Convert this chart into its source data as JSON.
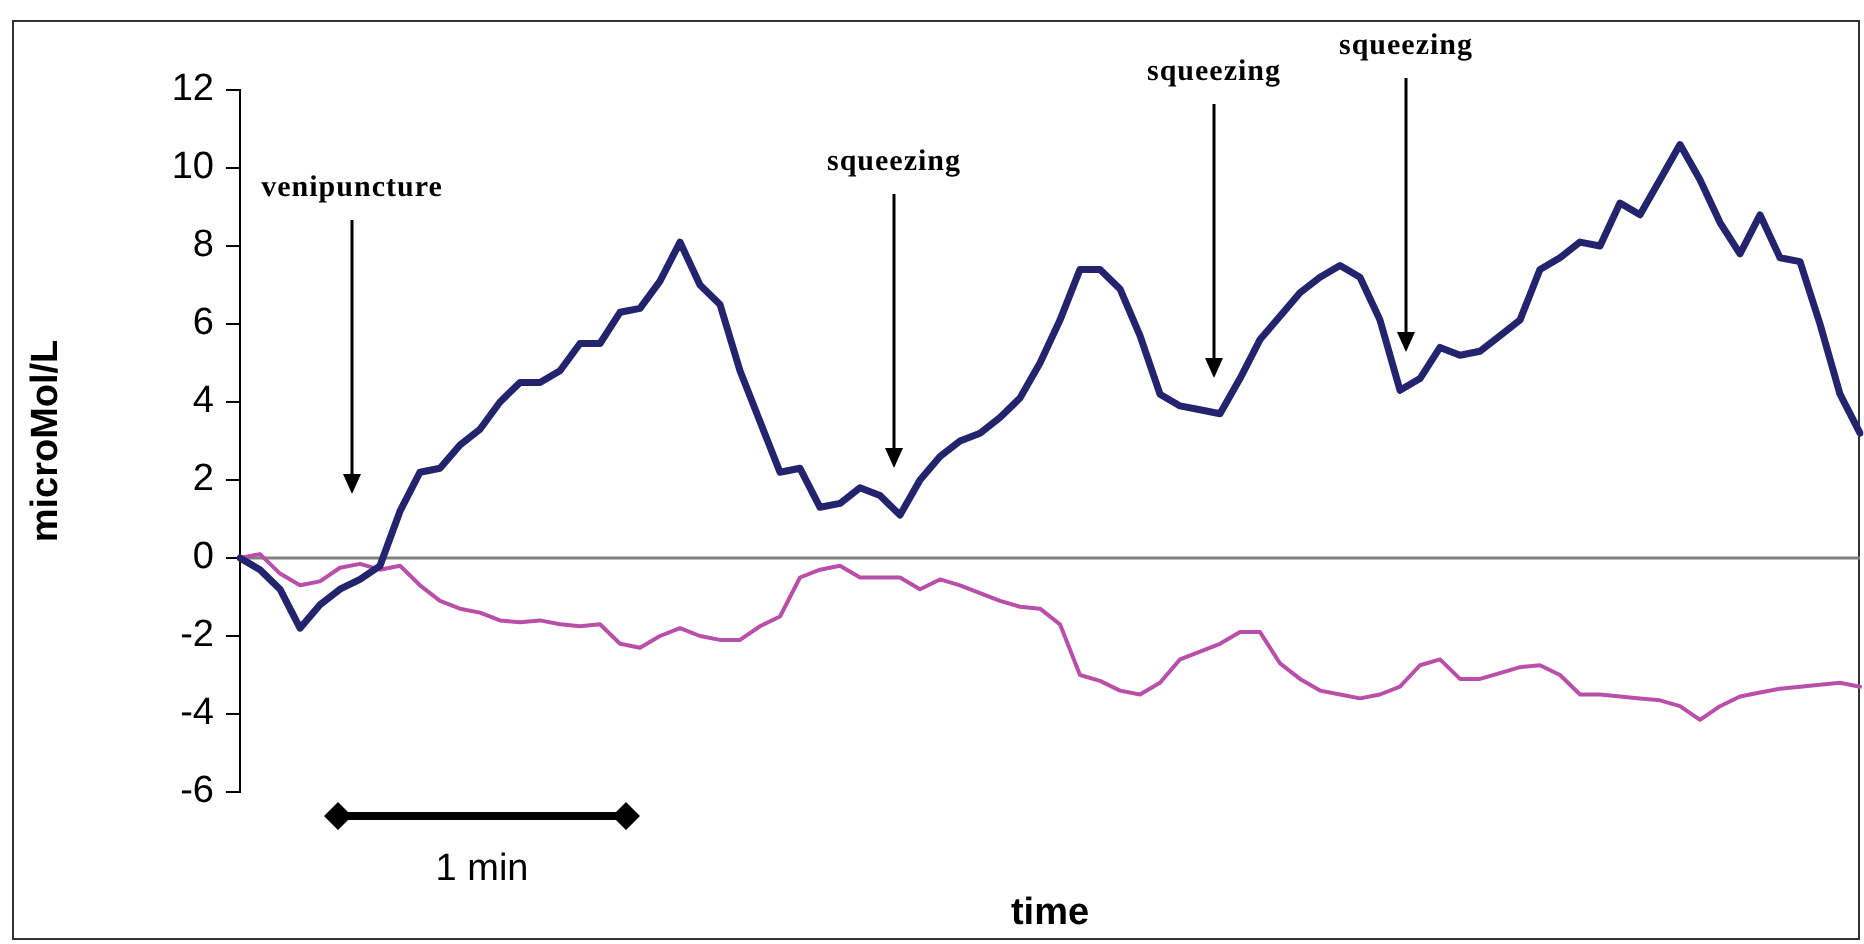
{
  "chart_data": {
    "type": "line",
    "xlabel": "time",
    "ylabel": "microMol/L",
    "categories": [
      null,
      null,
      null,
      null,
      null,
      null,
      null,
      null,
      null,
      null,
      null,
      null,
      null,
      null,
      null,
      null,
      null,
      null,
      null,
      null,
      null,
      null,
      null,
      null,
      null,
      null,
      null,
      null,
      null,
      null,
      null,
      null,
      null,
      null,
      null,
      null,
      null,
      null,
      null,
      null,
      null,
      null,
      null,
      null,
      null,
      null,
      null,
      null,
      null,
      null,
      null,
      null,
      null,
      null,
      null,
      null,
      null,
      null,
      null,
      null,
      null,
      null,
      null,
      null,
      null,
      null,
      null,
      null,
      null,
      null,
      null,
      null,
      null,
      null,
      null,
      null,
      null,
      null,
      null,
      null,
      null,
      null
    ],
    "ylim": [
      -6,
      12
    ],
    "yticks": [
      -6,
      -4,
      -2,
      0,
      2,
      4,
      6,
      8,
      10,
      12
    ],
    "tick_labels": "y",
    "legend": false,
    "marker": "none",
    "line_style": "solid",
    "ref_lines": [
      {
        "axis": "y",
        "value": 0,
        "color": "#808080"
      }
    ],
    "annotations": [
      "venipuncture",
      "squeezing",
      "squeezing",
      "squeezing",
      "1 min"
    ],
    "series": [
      {
        "color": "#24246e",
        "values": [
          0,
          -0.3,
          -0.8,
          -1.8,
          -1.2,
          -0.8,
          -0.55,
          -0.2,
          1.2,
          2.2,
          2.3,
          2.9,
          3.3,
          4.0,
          4.5,
          4.5,
          4.8,
          5.5,
          5.5,
          6.3,
          6.4,
          7.1,
          8.1,
          7.0,
          6.5,
          4.8,
          3.5,
          2.2,
          2.3,
          1.3,
          1.4,
          1.8,
          1.6,
          1.1,
          2.0,
          2.6,
          3.0,
          3.2,
          3.6,
          4.1,
          5.0,
          6.1,
          7.4,
          7.4,
          6.9,
          5.7,
          4.2,
          3.9,
          3.8,
          3.7,
          4.6,
          5.6,
          6.2,
          6.8,
          7.2,
          7.5,
          7.2,
          6.1,
          4.3,
          4.6,
          5.4,
          5.2,
          5.3,
          5.7,
          6.1,
          7.4,
          7.7,
          8.1,
          8.0,
          9.1,
          8.8,
          9.7,
          10.6,
          9.7,
          8.6,
          7.8,
          8.8,
          7.7,
          7.6,
          6.0,
          4.2,
          3.2
        ]
      },
      {
        "color": "#b94fa8",
        "values": [
          0,
          0.1,
          -0.4,
          -0.7,
          -0.6,
          -0.25,
          -0.15,
          -0.3,
          -0.2,
          -0.7,
          -1.1,
          -1.3,
          -1.4,
          -1.6,
          -1.65,
          -1.6,
          -1.7,
          -1.75,
          -1.7,
          -2.2,
          -2.3,
          -2.0,
          -1.8,
          -2.0,
          -2.1,
          -2.1,
          -1.75,
          -1.5,
          -0.5,
          -0.3,
          -0.2,
          -0.5,
          -0.5,
          -0.5,
          -0.8,
          -0.55,
          -0.7,
          -0.9,
          -1.1,
          -1.25,
          -1.3,
          -1.7,
          -3.0,
          -3.15,
          -3.4,
          -3.5,
          -3.2,
          -2.6,
          -2.4,
          -2.2,
          -1.9,
          -1.9,
          -2.7,
          -3.1,
          -3.4,
          -3.5,
          -3.6,
          -3.5,
          -3.3,
          -2.75,
          -2.6,
          -3.1,
          -3.1,
          -2.95,
          -2.8,
          -2.75,
          -3.0,
          -3.5,
          -3.5,
          -3.55,
          -3.6,
          -3.65,
          -3.8,
          -4.15,
          -3.8,
          -3.55,
          -3.45,
          -3.35,
          -3.3,
          -3.25,
          -3.2,
          -3.3
        ]
      }
    ]
  }
}
